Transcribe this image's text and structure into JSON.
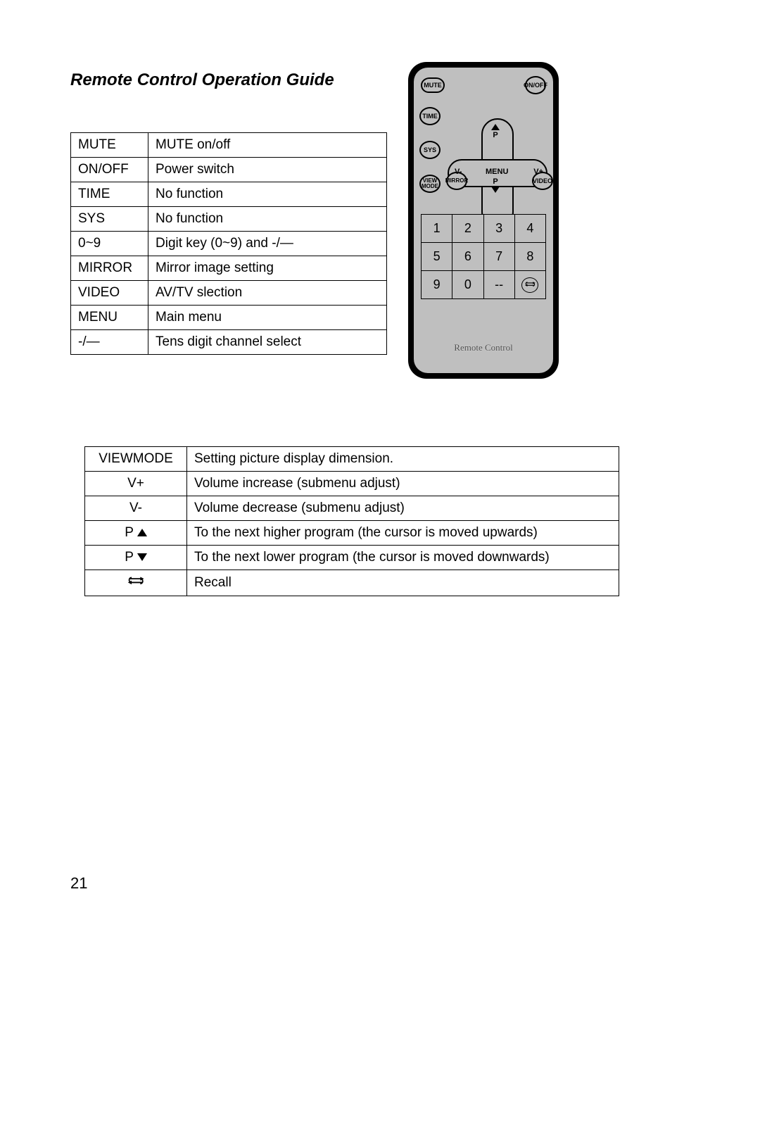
{
  "title": "Remote Control Operation Guide",
  "page_number": "21",
  "table1": {
    "rows": [
      [
        "MUTE",
        "MUTE on/off"
      ],
      [
        "ON/OFF",
        "Power switch"
      ],
      [
        "TIME",
        "No function"
      ],
      [
        "SYS",
        "No function"
      ],
      [
        "0~9",
        "Digit key (0~9) and -/—"
      ],
      [
        "MIRROR",
        "Mirror image setting"
      ],
      [
        "VIDEO",
        "AV/TV slection"
      ],
      [
        "MENU",
        "Main menu"
      ],
      [
        "-/—",
        "Tens digit channel select"
      ]
    ]
  },
  "table2": {
    "rows": [
      {
        "key": "VIEWMODE",
        "desc": "Setting picture display dimension."
      },
      {
        "key": "V+",
        "desc": "Volume increase (submenu adjust)"
      },
      {
        "key": "V-",
        "desc": "Volume decrease (submenu adjust)"
      },
      {
        "key": "P_UP",
        "desc": "To the next higher program (the cursor is moved upwards)"
      },
      {
        "key": "P_DOWN",
        "desc": "To the next lower program (the cursor is moved downwards)"
      },
      {
        "key": "RECALL",
        "desc": "Recall"
      }
    ]
  },
  "remote": {
    "caption": "Remote Control",
    "buttons": {
      "mute": "MUTE",
      "onoff": "ON/OFF",
      "time": "TIME",
      "sys": "SYS",
      "viewmode": "VIEW\nMODE",
      "mirror": "MIRROR",
      "video": "VIDEO",
      "v_minus": "V-",
      "v_plus": "V+",
      "menu": "MENU",
      "p": "P"
    },
    "numpad": [
      [
        "1",
        "2",
        "3",
        "4"
      ],
      [
        "5",
        "6",
        "7",
        "8"
      ],
      [
        "9",
        "0",
        "--",
        "RECALL"
      ]
    ],
    "colors": {
      "body": "#bfbfbf",
      "outline": "#000000",
      "background": "#ffffff"
    }
  }
}
